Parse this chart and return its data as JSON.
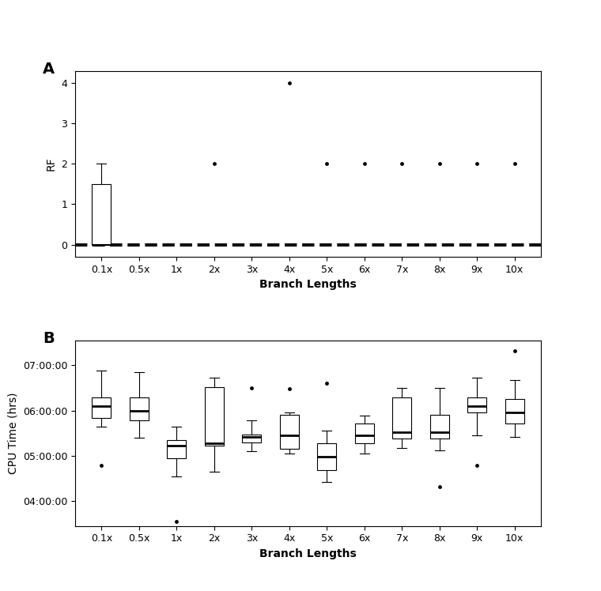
{
  "categories": [
    "0.1x",
    "0.5x",
    "1x",
    "2x",
    "3x",
    "4x",
    "5x",
    "6x",
    "7x",
    "8x",
    "9x",
    "10x"
  ],
  "panel_a_label": "A",
  "panel_b_label": "B",
  "ylabel_a": "RF",
  "ylabel_b": "CPU Time (hrs)",
  "xlabel": "Branch Lengths",
  "rf_boxes": [
    {
      "q1": 0,
      "median": 0,
      "q3": 1.5,
      "whislo": 0,
      "whishi": 2.0,
      "fliers": []
    },
    {
      "q1": 0,
      "median": 0,
      "q3": 0,
      "whislo": 0,
      "whishi": 0,
      "fliers": []
    },
    {
      "q1": 0,
      "median": 0,
      "q3": 0,
      "whislo": 0,
      "whishi": 0,
      "fliers": []
    },
    {
      "q1": 0,
      "median": 0,
      "q3": 0,
      "whislo": 0,
      "whishi": 0,
      "fliers": [
        2.0
      ]
    },
    {
      "q1": 0,
      "median": 0,
      "q3": 0,
      "whislo": 0,
      "whishi": 0,
      "fliers": []
    },
    {
      "q1": 0,
      "median": 0,
      "q3": 0,
      "whislo": 0,
      "whishi": 0,
      "fliers": [
        4.0
      ]
    },
    {
      "q1": 0,
      "median": 0,
      "q3": 0,
      "whislo": 0,
      "whishi": 0,
      "fliers": [
        2.0
      ]
    },
    {
      "q1": 0,
      "median": 0,
      "q3": 0,
      "whislo": 0,
      "whishi": 0,
      "fliers": [
        2.0
      ]
    },
    {
      "q1": 0,
      "median": 0,
      "q3": 0,
      "whislo": 0,
      "whishi": 0,
      "fliers": [
        2.0
      ]
    },
    {
      "q1": 0,
      "median": 0,
      "q3": 0,
      "whislo": 0,
      "whishi": 0,
      "fliers": [
        2.0
      ]
    },
    {
      "q1": 0,
      "median": 0,
      "q3": 0,
      "whislo": 0,
      "whishi": 0,
      "fliers": [
        2.0
      ]
    },
    {
      "q1": 0,
      "median": 0,
      "q3": 0,
      "whislo": 0,
      "whishi": 0,
      "fliers": [
        2.0
      ]
    }
  ],
  "cpu_boxes": [
    {
      "q1": 5.83,
      "median": 6.1,
      "q3": 6.28,
      "whislo": 5.65,
      "whishi": 6.88,
      "fliers": [
        4.78
      ]
    },
    {
      "q1": 5.78,
      "median": 6.0,
      "q3": 6.28,
      "whislo": 5.4,
      "whishi": 6.85,
      "fliers": []
    },
    {
      "q1": 4.95,
      "median": 5.22,
      "q3": 5.35,
      "whislo": 4.55,
      "whishi": 5.65,
      "fliers": [
        3.55
      ]
    },
    {
      "q1": 5.22,
      "median": 5.28,
      "q3": 6.52,
      "whislo": 4.65,
      "whishi": 6.72,
      "fliers": []
    },
    {
      "q1": 5.3,
      "median": 5.42,
      "q3": 5.47,
      "whislo": 5.1,
      "whishi": 5.78,
      "fliers": [
        6.5
      ]
    },
    {
      "q1": 5.15,
      "median": 5.45,
      "q3": 5.9,
      "whislo": 5.05,
      "whishi": 5.95,
      "fliers": [
        6.48
      ]
    },
    {
      "q1": 4.68,
      "median": 4.98,
      "q3": 5.28,
      "whislo": 4.42,
      "whishi": 5.55,
      "fliers": [
        6.6
      ]
    },
    {
      "q1": 5.28,
      "median": 5.45,
      "q3": 5.72,
      "whislo": 5.05,
      "whishi": 5.88,
      "fliers": []
    },
    {
      "q1": 5.38,
      "median": 5.52,
      "q3": 6.28,
      "whislo": 5.18,
      "whishi": 6.5,
      "fliers": []
    },
    {
      "q1": 5.38,
      "median": 5.52,
      "q3": 5.9,
      "whislo": 5.12,
      "whishi": 6.5,
      "fliers": [
        4.32
      ]
    },
    {
      "q1": 5.95,
      "median": 6.1,
      "q3": 6.28,
      "whislo": 5.45,
      "whishi": 6.72,
      "fliers": [
        4.78
      ]
    },
    {
      "q1": 5.72,
      "median": 5.95,
      "q3": 6.25,
      "whislo": 5.42,
      "whishi": 6.68,
      "fliers": [
        7.32
      ]
    }
  ],
  "rf_ylim": [
    -0.3,
    4.3
  ],
  "rf_yticks": [
    0,
    1,
    2,
    3,
    4
  ],
  "cpu_ylim_min": 3.45,
  "cpu_ylim_max": 7.55,
  "cpu_yticks": [
    4.0,
    5.0,
    6.0,
    7.0
  ],
  "cpu_ytick_labels": [
    "04:00:00",
    "05:00:00",
    "06:00:00",
    "07:00:00"
  ],
  "box_color": "white",
  "median_color": "black",
  "whisker_color": "black",
  "flier_color": "black",
  "dashed_line_color": "#111111",
  "tick_fontsize": 9,
  "label_fontsize": 10,
  "panel_label_fontsize": 14
}
